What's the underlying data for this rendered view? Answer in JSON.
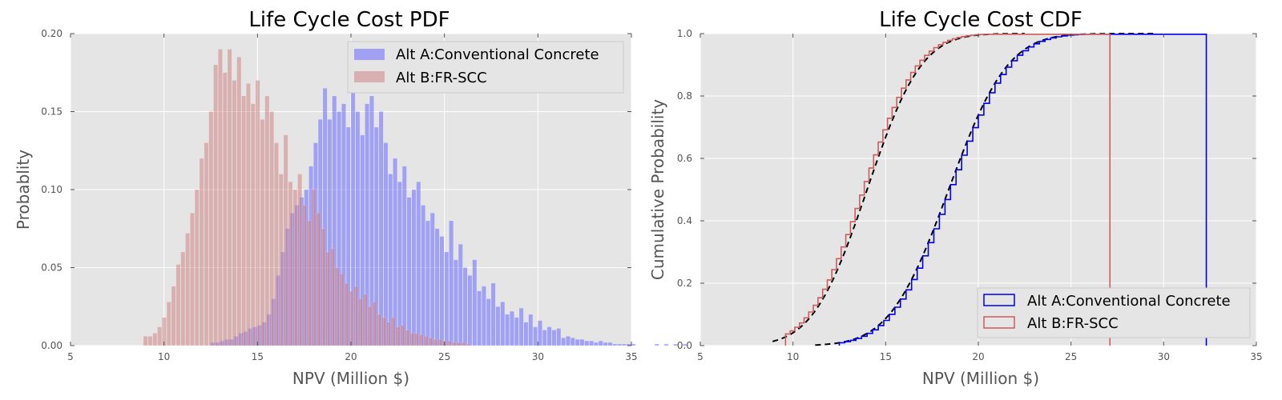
{
  "chart_data": [
    {
      "type": "histogram",
      "title": "Life Cycle Cost PDF",
      "xlabel": "NPV (Million $)",
      "ylabel": "Probablity",
      "xlim": [
        5,
        35
      ],
      "ylim": [
        0,
        0.2
      ],
      "xticks": [
        "5",
        "10",
        "15",
        "20",
        "25",
        "30",
        "35"
      ],
      "yticks": [
        "0.00",
        "0.05",
        "0.10",
        "0.15",
        "0.20"
      ],
      "grid": true,
      "background": "#e5e5e5",
      "legend_position": "top-right",
      "bin_width": 0.25,
      "series": [
        {
          "name": "Alt A:Conventional Concrete",
          "color": "#6a6aff",
          "alpha": 0.55,
          "x_start": 12.5,
          "values": [
            0.002,
            0.002,
            0.003,
            0.004,
            0.004,
            0.006,
            0.008,
            0.009,
            0.011,
            0.012,
            0.013,
            0.015,
            0.02,
            0.03,
            0.045,
            0.06,
            0.075,
            0.085,
            0.09,
            0.095,
            0.1,
            0.115,
            0.13,
            0.145,
            0.165,
            0.145,
            0.16,
            0.15,
            0.155,
            0.14,
            0.165,
            0.15,
            0.135,
            0.155,
            0.16,
            0.14,
            0.15,
            0.13,
            0.11,
            0.12,
            0.105,
            0.115,
            0.095,
            0.1,
            0.105,
            0.09,
            0.08,
            0.085,
            0.075,
            0.07,
            0.06,
            0.08,
            0.055,
            0.065,
            0.05,
            0.045,
            0.055,
            0.035,
            0.038,
            0.03,
            0.04,
            0.025,
            0.028,
            0.02,
            0.022,
            0.018,
            0.024,
            0.015,
            0.02,
            0.012,
            0.016,
            0.01,
            0.012,
            0.01,
            0.011,
            0.005,
            0.006,
            0.005,
            0.004,
            0.004,
            0.003,
            0.003,
            0.002,
            0.003,
            0.002,
            0.002,
            0.001,
            0.001,
            0.001,
            0.001,
            0.001,
            0.0,
            0.0,
            0.0,
            0.0,
            0.001,
            0.0,
            0.001,
            0.0,
            0.001,
            0.0,
            0.001,
            0.0,
            0.0,
            0.0,
            0.0,
            0.0,
            0.0,
            0.0,
            0.0,
            0.001
          ]
        },
        {
          "name": "Alt B:FR-SCC",
          "color": "#cd7b7b",
          "alpha": 0.5,
          "x_start": 8.9,
          "values": [
            0.006,
            0.006,
            0.008,
            0.012,
            0.018,
            0.028,
            0.038,
            0.052,
            0.06,
            0.072,
            0.085,
            0.1,
            0.12,
            0.13,
            0.15,
            0.18,
            0.19,
            0.175,
            0.19,
            0.17,
            0.185,
            0.16,
            0.168,
            0.155,
            0.17,
            0.145,
            0.16,
            0.15,
            0.13,
            0.11,
            0.135,
            0.105,
            0.1,
            0.11,
            0.09,
            0.08,
            0.1,
            0.085,
            0.075,
            0.06,
            0.062,
            0.05,
            0.046,
            0.04,
            0.035,
            0.038,
            0.03,
            0.033,
            0.025,
            0.028,
            0.02,
            0.018,
            0.015,
            0.018,
            0.012,
            0.013,
            0.01,
            0.008,
            0.008,
            0.007,
            0.006,
            0.005,
            0.004,
            0.004,
            0.003,
            0.003,
            0.002,
            0.002,
            0.002,
            0.001
          ]
        }
      ]
    },
    {
      "type": "line",
      "subtype": "step-cdf",
      "title": "Life Cycle Cost CDF",
      "xlabel": "NPV (Million $)",
      "ylabel": "Cumulative Probability",
      "xlim": [
        5,
        35
      ],
      "ylim": [
        0,
        1.0
      ],
      "xticks": [
        "5",
        "10",
        "15",
        "20",
        "25",
        "30",
        "35"
      ],
      "yticks": [
        "0.0",
        "0.2",
        "0.4",
        "0.6",
        "0.8",
        "1.0"
      ],
      "grid": true,
      "background": "#e5e5e5",
      "legend_position": "bottom-right",
      "series": [
        {
          "name": "Alt A:Conventional Concrete",
          "color": "#0000ee",
          "mean": 18.4,
          "sd": 2.5,
          "x_start": 12.5,
          "x_end": 32.3,
          "step": 0.3
        },
        {
          "name": "Alt B:FR-SCC",
          "color": "#cd5c5c",
          "mean": 13.7,
          "sd": 2.3,
          "x_start": 9.6,
          "x_end": 27.1,
          "step": 0.25
        }
      ],
      "fit_curves": [
        {
          "mean": 14.0,
          "sd": 2.3,
          "x_start": 8.9,
          "x_end": 22.5,
          "color": "#000000",
          "dash": "dashed"
        },
        {
          "mean": 18.4,
          "sd": 2.5,
          "x_start": 11.2,
          "x_end": 29.5,
          "color": "#000000",
          "dash": "dashed"
        }
      ]
    }
  ]
}
